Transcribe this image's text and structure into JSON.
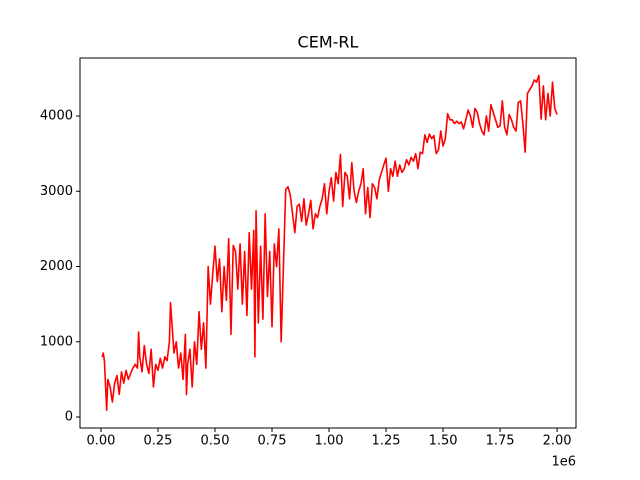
{
  "chart_data": {
    "type": "line",
    "title": "CEM-RL",
    "x_offset_label": "1e6",
    "x": [
      5000,
      10000,
      15000,
      25000,
      30000,
      40000,
      50000,
      60000,
      70000,
      80000,
      90000,
      100000,
      110000,
      120000,
      130000,
      140000,
      150000,
      160000,
      165000,
      170000,
      180000,
      190000,
      200000,
      210000,
      220000,
      230000,
      240000,
      250000,
      260000,
      270000,
      280000,
      290000,
      300000,
      305000,
      310000,
      320000,
      330000,
      340000,
      350000,
      360000,
      370000,
      375000,
      380000,
      390000,
      400000,
      410000,
      420000,
      430000,
      440000,
      450000,
      460000,
      470000,
      480000,
      490000,
      500000,
      510000,
      520000,
      530000,
      540000,
      550000,
      560000,
      570000,
      580000,
      590000,
      600000,
      610000,
      620000,
      630000,
      640000,
      650000,
      660000,
      670000,
      675000,
      680000,
      690000,
      700000,
      710000,
      720000,
      730000,
      740000,
      750000,
      760000,
      770000,
      780000,
      790000,
      800000,
      810000,
      820000,
      830000,
      840000,
      850000,
      860000,
      870000,
      880000,
      890000,
      900000,
      910000,
      920000,
      930000,
      940000,
      950000,
      960000,
      970000,
      980000,
      990000,
      1000000,
      1010000,
      1020000,
      1030000,
      1040000,
      1050000,
      1060000,
      1070000,
      1080000,
      1090000,
      1100000,
      1110000,
      1120000,
      1130000,
      1140000,
      1150000,
      1160000,
      1170000,
      1180000,
      1190000,
      1200000,
      1210000,
      1220000,
      1230000,
      1240000,
      1250000,
      1260000,
      1270000,
      1280000,
      1290000,
      1300000,
      1310000,
      1320000,
      1330000,
      1340000,
      1350000,
      1360000,
      1370000,
      1380000,
      1390000,
      1400000,
      1410000,
      1420000,
      1430000,
      1440000,
      1450000,
      1460000,
      1470000,
      1480000,
      1490000,
      1500000,
      1510000,
      1520000,
      1530000,
      1540000,
      1550000,
      1560000,
      1570000,
      1580000,
      1590000,
      1600000,
      1610000,
      1620000,
      1630000,
      1640000,
      1650000,
      1660000,
      1670000,
      1680000,
      1690000,
      1700000,
      1710000,
      1720000,
      1730000,
      1740000,
      1750000,
      1760000,
      1770000,
      1780000,
      1790000,
      1800000,
      1810000,
      1820000,
      1830000,
      1840000,
      1850000,
      1860000,
      1870000,
      1880000,
      1890000,
      1900000,
      1910000,
      1920000,
      1930000,
      1940000,
      1950000,
      1960000,
      1970000,
      1980000,
      1990000,
      2000000
    ],
    "series": [
      {
        "color": "#ff0000",
        "values": [
          800,
          850,
          750,
          90,
          500,
          400,
          200,
          450,
          550,
          300,
          600,
          450,
          620,
          500,
          580,
          650,
          700,
          650,
          1130,
          800,
          600,
          950,
          700,
          580,
          900,
          400,
          700,
          620,
          780,
          650,
          800,
          750,
          1000,
          1520,
          1300,
          850,
          1000,
          650,
          850,
          500,
          1100,
          300,
          700,
          900,
          400,
          1000,
          700,
          1400,
          900,
          1250,
          650,
          2000,
          1500,
          1900,
          2270,
          1800,
          2100,
          1400,
          2000,
          1550,
          2370,
          1100,
          2280,
          2200,
          1700,
          2300,
          1500,
          2200,
          1350,
          2450,
          1700,
          2480,
          800,
          2740,
          1250,
          2270,
          1300,
          2700,
          1600,
          2200,
          1200,
          2300,
          2000,
          2500,
          1000,
          2000,
          3020,
          3060,
          2950,
          2700,
          2450,
          2800,
          2830,
          2600,
          2900,
          2550,
          2700,
          2880,
          2500,
          2700,
          2650,
          2800,
          2900,
          3100,
          2700,
          3000,
          3180,
          2870,
          3250,
          3100,
          3490,
          2800,
          3250,
          3200,
          2900,
          3380,
          3000,
          2850,
          3000,
          3100,
          3300,
          2700,
          3050,
          2650,
          3100,
          3050,
          2900,
          3150,
          3250,
          3350,
          3440,
          3000,
          3300,
          3200,
          3400,
          3200,
          3350,
          3250,
          3300,
          3420,
          3350,
          3450,
          3400,
          3500,
          3300,
          3520,
          3500,
          3750,
          3650,
          3760,
          3700,
          3740,
          3500,
          3550,
          3800,
          3600,
          3700,
          4030,
          3950,
          3950,
          3900,
          3930,
          3900,
          3920,
          3830,
          3950,
          4080,
          4000,
          3850,
          4100,
          4050,
          3900,
          3800,
          3750,
          4000,
          3800,
          4150,
          4050,
          3950,
          3850,
          3870,
          4200,
          3850,
          3750,
          4020,
          3950,
          3850,
          3800,
          4180,
          4200,
          3900,
          3520,
          4300,
          4350,
          4400,
          4480,
          4450,
          4540,
          3960,
          4400,
          3950,
          4300,
          4000,
          4450,
          4100,
          4020
        ]
      }
    ],
    "xlim": [
      -92000,
      2083000
    ],
    "xticks": [
      {
        "value": 0,
        "label": "0.00"
      },
      {
        "value": 250000,
        "label": "0.25"
      },
      {
        "value": 500000,
        "label": "0.50"
      },
      {
        "value": 750000,
        "label": "0.75"
      },
      {
        "value": 1000000,
        "label": "1.00"
      },
      {
        "value": 1250000,
        "label": "1.25"
      },
      {
        "value": 1500000,
        "label": "1.50"
      },
      {
        "value": 1750000,
        "label": "1.75"
      },
      {
        "value": 2000000,
        "label": "2.00"
      }
    ],
    "ylim": [
      -146,
      4771
    ],
    "yticks": [
      0,
      1000,
      2000,
      3000,
      4000
    ]
  }
}
